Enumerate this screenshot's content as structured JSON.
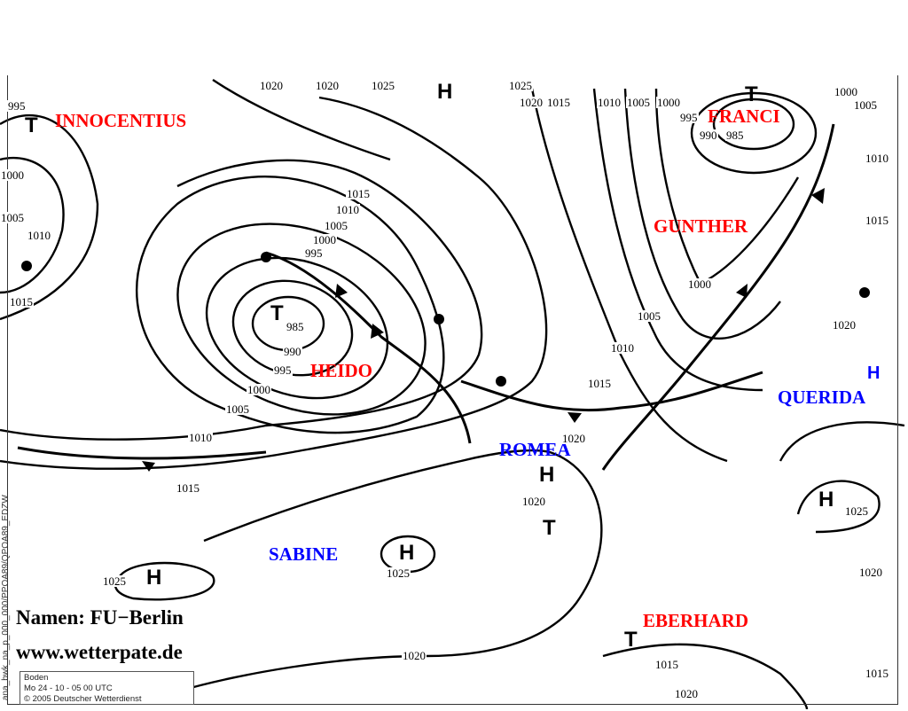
{
  "side_label": "ana_bwk_na_p_000_000/PPOA89/QPOA89_EDZW",
  "legend": {
    "line1": "Boden",
    "line2": "Mo  24 - 10 - 05  00  UTC",
    "line3": "© 2005 Deutscher Wetterdienst"
  },
  "credits": {
    "names": "Namen: FU−Berlin",
    "site": "www.wetterpate.de"
  },
  "colors": {
    "high_pressure_name": "#0000ff",
    "low_pressure_name": "#ff0000",
    "isobar": "#000000"
  },
  "systems": {
    "names": [
      {
        "label": "INNOCENTIUS",
        "type": "low"
      },
      {
        "label": "FRANCI",
        "type": "low"
      },
      {
        "label": "GUNTHER",
        "type": "low"
      },
      {
        "label": "HEIDO",
        "type": "low"
      },
      {
        "label": "ROMEA",
        "type": "high"
      },
      {
        "label": "QUERIDA",
        "type": "high"
      },
      {
        "label": "SABINE",
        "type": "high"
      },
      {
        "label": "EBERHARD",
        "type": "low"
      }
    ],
    "markers": [
      "H",
      "T",
      "T",
      "T",
      "H",
      "H",
      "T",
      "H",
      "H",
      "H",
      "T"
    ]
  },
  "isobar_labels": [
    "995",
    "1020",
    "1020",
    "1025",
    "1025",
    "1020",
    "1015",
    "1010",
    "1005",
    "1000",
    "995",
    "990",
    "985",
    "1000",
    "1005",
    "1010",
    "1015",
    "1000",
    "1005",
    "1010",
    "1015",
    "1015",
    "1010",
    "1005",
    "1000",
    "995",
    "985",
    "990",
    "995",
    "1000",
    "1005",
    "1010",
    "1015",
    "1020",
    "1025",
    "1025",
    "1020",
    "1020",
    "1015",
    "1010",
    "1005",
    "1000",
    "1020",
    "1025",
    "1020",
    "1015",
    "1015",
    "1020"
  ]
}
